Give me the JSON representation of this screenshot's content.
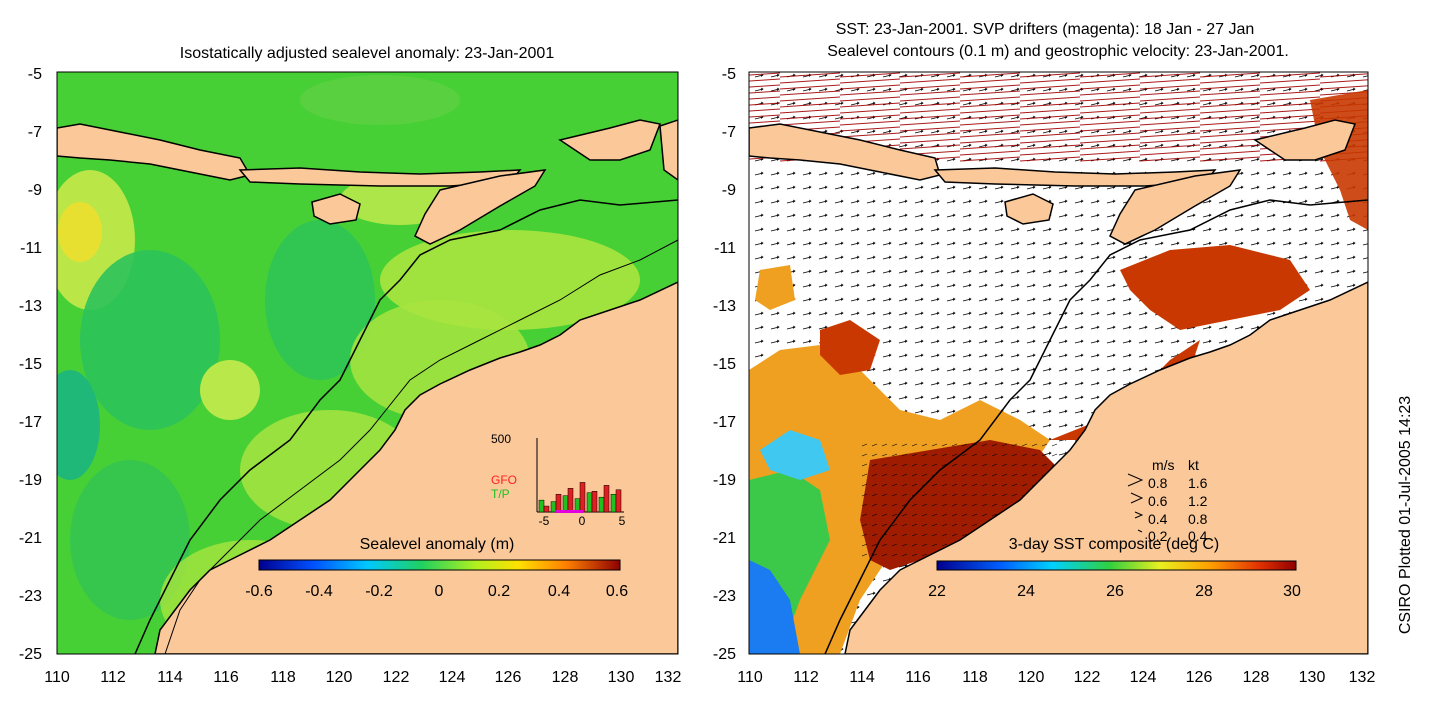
{
  "left_panel": {
    "title": "Isostatically adjusted sealevel anomaly: 23-Jan-2001",
    "colorbar_label": "Sealevel anomaly (m)",
    "colorbar_ticks": [
      "-0.6",
      "-0.4",
      "-0.2",
      "0",
      "0.2",
      "0.4",
      "0.6"
    ],
    "inset": {
      "ymax_label": "500",
      "legend_gfo": "GFO",
      "legend_tp": "T/P",
      "x_ticks": [
        "-5",
        "0",
        "5"
      ],
      "gfo_values": [
        40,
        120,
        160,
        200,
        140,
        180,
        150
      ],
      "tp_values": [
        80,
        70,
        110,
        90,
        130,
        100,
        120
      ]
    }
  },
  "right_panel": {
    "title_line1": "SST: 23-Jan-2001. SVP drifters (magenta): 18 Jan - 27 Jan",
    "title_line2": "Sealevel contours (0.1 m) and geostrophic velocity: 23-Jan-2001.",
    "colorbar_label": "3-day SST composite (deg C)",
    "colorbar_ticks": [
      "22",
      "24",
      "26",
      "28",
      "30"
    ],
    "velocity_legend": {
      "header_ms": "m/s",
      "header_kt": "kt",
      "rows": [
        {
          "ms": "0.8",
          "kt": "1.6"
        },
        {
          "ms": "0.6",
          "kt": "1.2"
        },
        {
          "ms": "0.4",
          "kt": "0.8"
        },
        {
          "ms": "0.2",
          "kt": "0.4"
        }
      ]
    }
  },
  "axes": {
    "lat_ticks": [
      "-5",
      "-7",
      "-9",
      "-11",
      "-13",
      "-15",
      "-17",
      "-19",
      "-21",
      "-23",
      "-25"
    ],
    "lon_ticks": [
      "110",
      "112",
      "114",
      "116",
      "118",
      "120",
      "122",
      "124",
      "126",
      "128",
      "130",
      "132"
    ]
  },
  "credit": "CSIRO Plotted 01-Jul-2005 14:23",
  "colors": {
    "land": "#fbc89a",
    "sea_base": "#3fd23f",
    "sst_hot": "#a01c00",
    "sst_warm": "#f09a1a"
  }
}
